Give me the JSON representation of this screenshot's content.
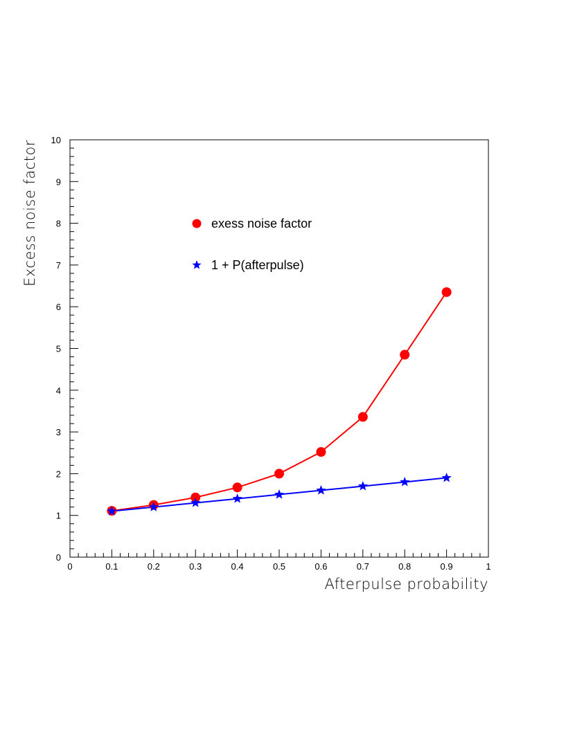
{
  "chart_data": {
    "type": "line",
    "title": "",
    "xlabel": "Afterpulse probability",
    "ylabel": "Excess noise factor",
    "xlim": [
      0,
      1
    ],
    "ylim": [
      0,
      10
    ],
    "xticks": [
      "0",
      "0.1",
      "0.2",
      "0.3",
      "0.4",
      "0.5",
      "0.6",
      "0.7",
      "0.8",
      "0.9",
      "1"
    ],
    "yticks": [
      "0",
      "1",
      "2",
      "3",
      "4",
      "5",
      "6",
      "7",
      "8",
      "9",
      "10"
    ],
    "grid": false,
    "legend_position": "upper-left inside plot",
    "x": [
      0.1,
      0.2,
      0.3,
      0.4,
      0.5,
      0.6,
      0.7,
      0.8,
      0.9
    ],
    "series": [
      {
        "name": "exess noise factor",
        "marker": "circle",
        "color": "#ff0000",
        "values": [
          1.11,
          1.25,
          1.43,
          1.67,
          2.0,
          2.52,
          3.36,
          4.85,
          6.35
        ]
      },
      {
        "name": "1 + P(afterpulse)",
        "marker": "star",
        "color": "#0000ff",
        "values": [
          1.1,
          1.2,
          1.3,
          1.4,
          1.5,
          1.6,
          1.7,
          1.8,
          1.9
        ]
      }
    ]
  }
}
